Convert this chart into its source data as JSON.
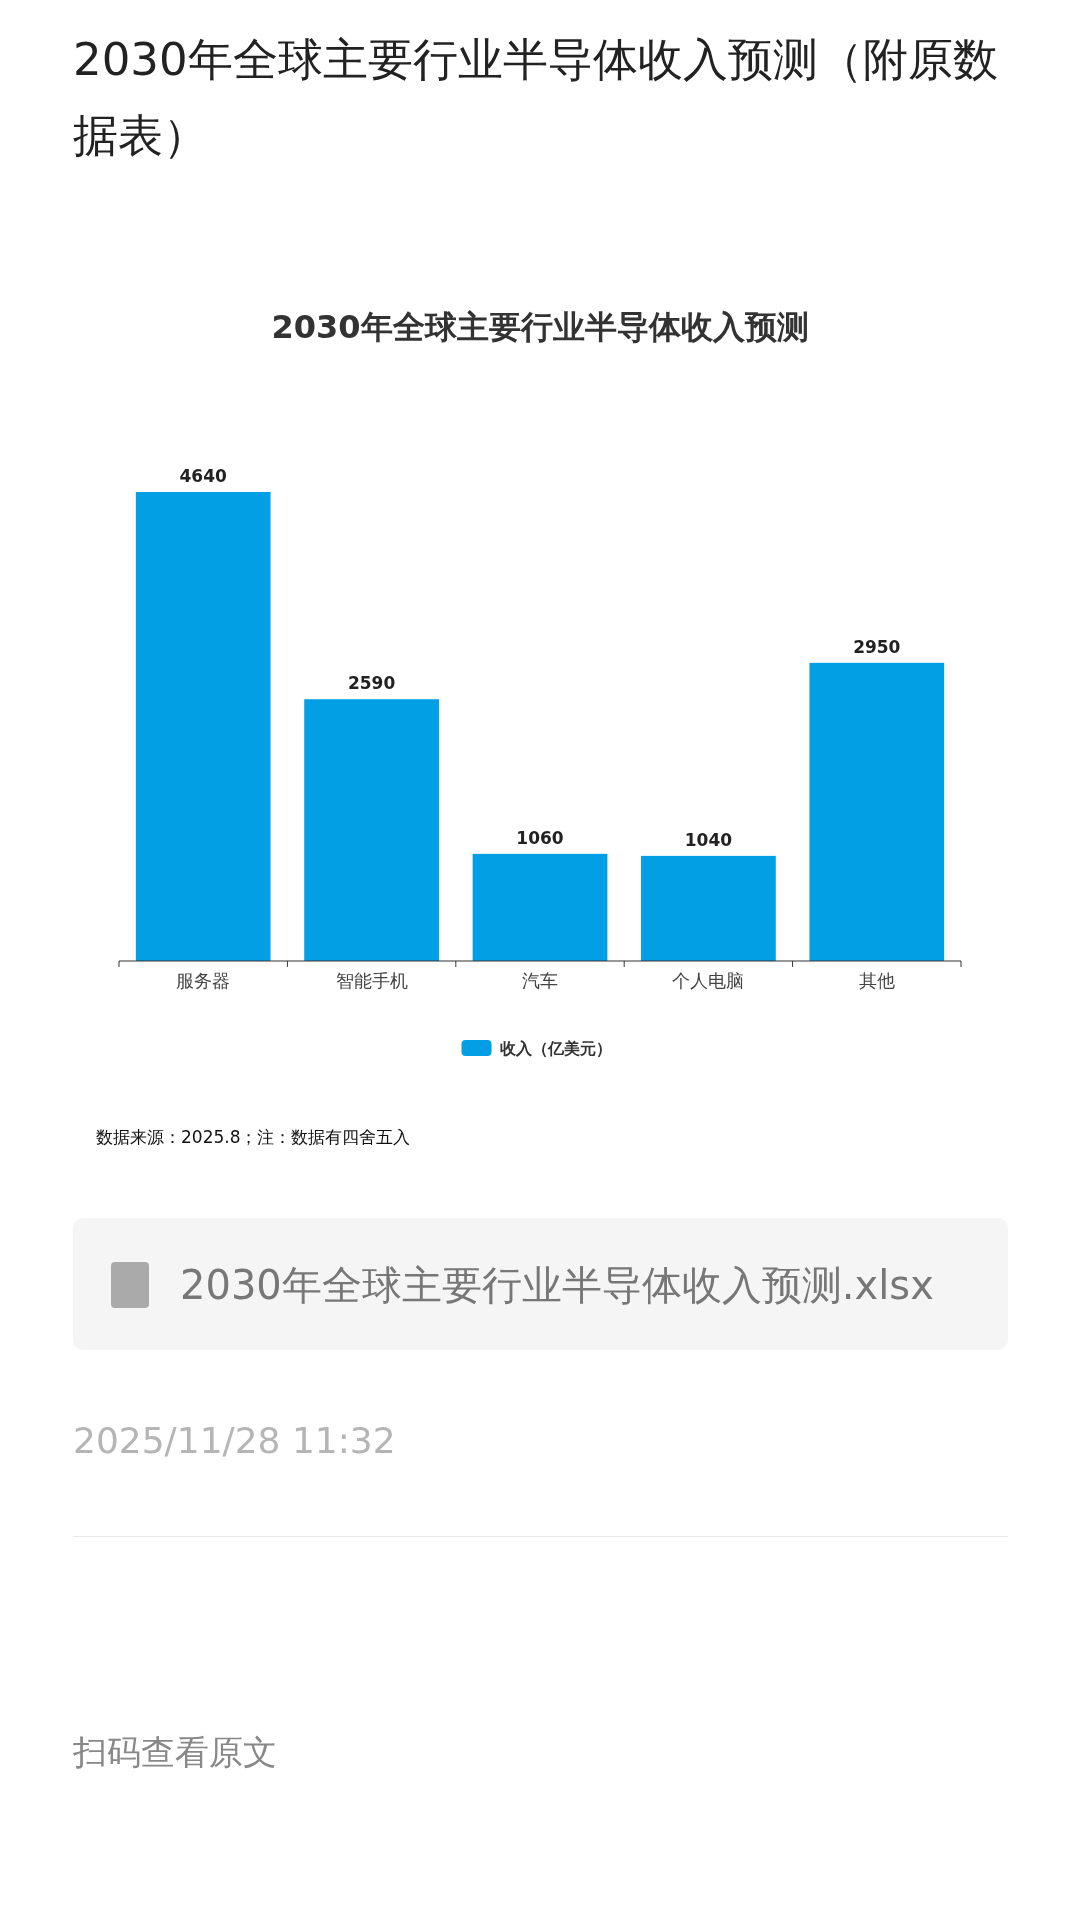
{
  "chart_data": {
    "type": "bar",
    "title": "2030年全球主要行业半导体收入预测",
    "categories": [
      "服务器",
      "智能手机",
      "汽车",
      "个人电脑",
      "其他"
    ],
    "series": [
      {
        "name": "收入（亿美元）",
        "color": "#039fe4",
        "values": [
          4640,
          2590,
          1060,
          1040,
          2950
        ]
      }
    ],
    "data_labels": true,
    "legend": "bottom",
    "annotations": [
      "2030年全球主要行业半导体收入预测（附原数据表）",
      "数据来源：2025.8；注：数据有四舍五入",
      "2030年全球主要行业半导体收入预测.xlsx",
      "2025/11/28 11:32",
      "扫码查看原文"
    ]
  }
}
